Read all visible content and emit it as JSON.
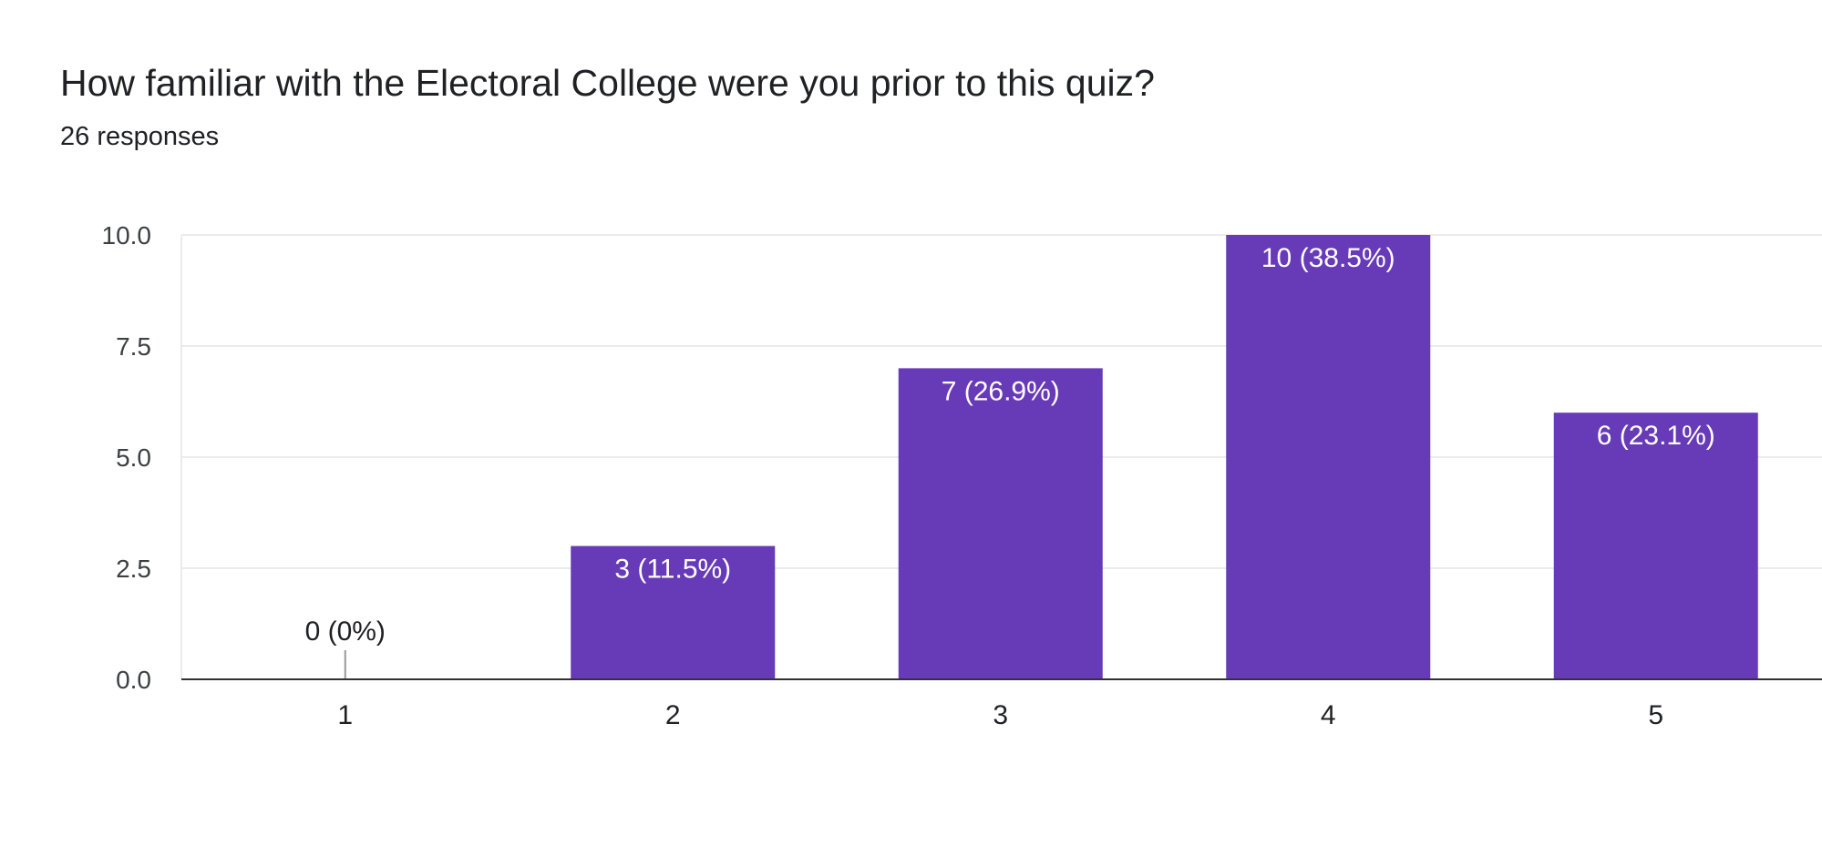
{
  "question": {
    "title": "How familiar with the Electoral College were you prior to this quiz?",
    "responses": "26 responses"
  },
  "colors": {
    "bar": "#673ab7",
    "grid": "#ebebeb",
    "baseline": "#333333",
    "inside_label": "#ffffff",
    "outside_label": "#202124",
    "zero_stub": "#999999"
  },
  "chart_data": {
    "type": "bar",
    "title": "How familiar with the Electoral College were you prior to this quiz?",
    "xlabel": "",
    "ylabel": "",
    "categories": [
      "1",
      "2",
      "3",
      "4",
      "5"
    ],
    "values": [
      0,
      3,
      7,
      10,
      6
    ],
    "data_labels": [
      "0 (0%)",
      "3 (11.5%)",
      "7 (26.9%)",
      "10 (38.5%)",
      "6 (23.1%)"
    ],
    "ylim": [
      0,
      10
    ],
    "yticks": [
      "0.0",
      "2.5",
      "5.0",
      "7.5",
      "10.0"
    ],
    "grid": true,
    "legend": "none"
  }
}
